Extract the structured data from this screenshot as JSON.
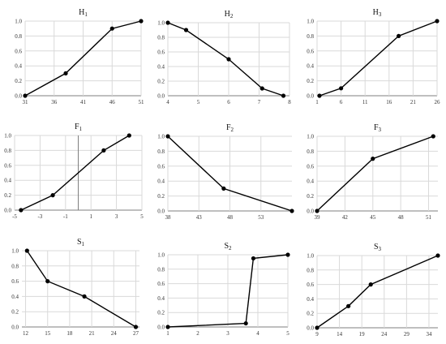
{
  "chart_data": [
    {
      "type": "line",
      "title": "H",
      "title_subscript": "1",
      "xlim": [
        31,
        51
      ],
      "ylim": [
        0,
        1
      ],
      "x_ticks": [
        "31",
        "36",
        "41",
        "46",
        "51"
      ],
      "y_ticks": [
        "0.0",
        "0.2",
        "0.4",
        "0.6",
        "0.8",
        "1.0"
      ],
      "series": [
        {
          "x": [
            31,
            38,
            46,
            51
          ],
          "y": [
            0,
            0.3,
            0.9,
            1.0
          ]
        }
      ]
    },
    {
      "type": "line",
      "title": "H",
      "title_subscript": "2",
      "xlim": [
        4,
        8
      ],
      "ylim": [
        0,
        1
      ],
      "x_ticks": [
        "4",
        "5",
        "6",
        "7",
        "8"
      ],
      "y_ticks": [
        "0.0",
        "0.2",
        "0.4",
        "0.6",
        "0.8",
        "1.0"
      ],
      "series": [
        {
          "x": [
            4,
            4.6,
            6,
            7.1,
            7.8
          ],
          "y": [
            1.0,
            0.9,
            0.5,
            0.1,
            0
          ]
        }
      ]
    },
    {
      "type": "line",
      "title": "H",
      "title_subscript": "3",
      "xlim": [
        1,
        26
      ],
      "ylim": [
        0,
        1
      ],
      "x_ticks": [
        "1",
        "6",
        "11",
        "16",
        "21",
        "26"
      ],
      "y_ticks": [
        "0.0",
        "0.2",
        "0.4",
        "0.6",
        "0.8",
        "1.0"
      ],
      "series": [
        {
          "x": [
            1.5,
            6,
            18,
            26
          ],
          "y": [
            0,
            0.1,
            0.8,
            1.0
          ]
        }
      ]
    },
    {
      "type": "line",
      "title": "F",
      "title_subscript": "1",
      "xlim": [
        -5,
        5
      ],
      "ylim": [
        0,
        1
      ],
      "x_ticks": [
        "-5",
        "-3",
        "-1",
        "1",
        "3",
        "5"
      ],
      "y_ticks": [
        "0.0",
        "0.2",
        "0.4",
        "0.6",
        "0.8",
        "1.0"
      ],
      "series": [
        {
          "x": [
            -4.5,
            -2,
            2,
            4
          ],
          "y": [
            0,
            0.2,
            0.8,
            1.0
          ]
        }
      ]
    },
    {
      "type": "line",
      "title": "F",
      "title_subscript": "2",
      "xlim": [
        38,
        58
      ],
      "ylim": [
        0,
        1
      ],
      "x_ticks": [
        "38",
        "43",
        "48",
        "53"
      ],
      "y_ticks": [
        "0.0",
        "0.2",
        "0.4",
        "0.6",
        "0.8",
        "1.0"
      ],
      "series": [
        {
          "x": [
            38,
            47,
            58
          ],
          "y": [
            1.0,
            0.3,
            0
          ]
        }
      ]
    },
    {
      "type": "line",
      "title": "F",
      "title_subscript": "3",
      "xlim": [
        39,
        52
      ],
      "ylim": [
        0,
        1
      ],
      "x_ticks": [
        "39",
        "42",
        "45",
        "48",
        "51"
      ],
      "y_ticks": [
        "0.0",
        "0.2",
        "0.4",
        "0.6",
        "0.8",
        "1.0"
      ],
      "series": [
        {
          "x": [
            39,
            45,
            51.5
          ],
          "y": [
            0,
            0.7,
            1.0
          ]
        }
      ]
    },
    {
      "type": "line",
      "title": "S",
      "title_subscript": "1",
      "xlim": [
        11.5,
        27.5
      ],
      "ylim": [
        0,
        1
      ],
      "x_ticks": [
        "12",
        "15",
        "18",
        "21",
        "24",
        "27"
      ],
      "y_ticks": [
        "0.0",
        "0.2",
        "0.4",
        "0.6",
        "0.8",
        "1.0"
      ],
      "series": [
        {
          "x": [
            12.2,
            15,
            20,
            27
          ],
          "y": [
            1.0,
            0.6,
            0.4,
            0
          ]
        }
      ]
    },
    {
      "type": "line",
      "title": "S",
      "title_subscript": "2",
      "xlim": [
        1,
        5
      ],
      "ylim": [
        0,
        1
      ],
      "x_ticks": [
        "1",
        "2",
        "3",
        "4",
        "5"
      ],
      "y_ticks": [
        "0.0",
        "0.2",
        "0.4",
        "0.6",
        "0.8",
        "1.0"
      ],
      "series": [
        {
          "x": [
            1,
            3.6,
            3.85,
            5
          ],
          "y": [
            0,
            0.05,
            0.95,
            1.0
          ]
        }
      ]
    },
    {
      "type": "line",
      "title": "S",
      "title_subscript": "3",
      "xlim": [
        9,
        36
      ],
      "ylim": [
        0,
        1
      ],
      "x_ticks": [
        "9",
        "14",
        "19",
        "24",
        "29",
        "34"
      ],
      "y_ticks": [
        "0.0",
        "0.2",
        "0.4",
        "0.6",
        "0.8",
        "1.0"
      ],
      "series": [
        {
          "x": [
            9,
            16,
            21,
            36
          ],
          "y": [
            0,
            0.3,
            0.6,
            1.0
          ]
        }
      ]
    }
  ]
}
